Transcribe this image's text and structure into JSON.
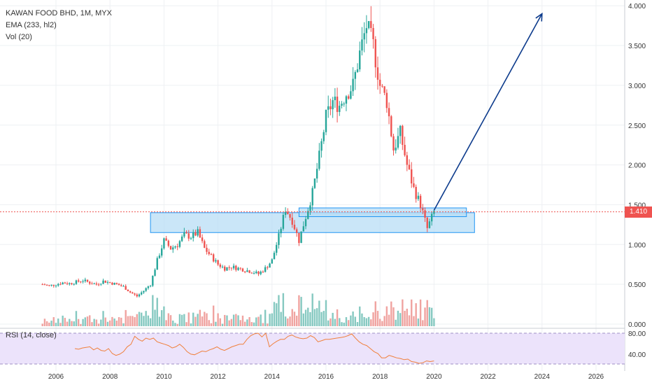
{
  "header": {
    "title": "KAWAN FOOD BHD, 1M, MYX",
    "indicator_ema": "EMA (233, hl2)",
    "indicator_vol": "Vol (20)"
  },
  "rsi": {
    "label": "RSI (14, close)",
    "y_ticks": [
      "80.00",
      "40.00"
    ],
    "values": [
      55,
      54,
      56,
      57,
      58,
      53,
      56,
      52,
      51,
      55,
      47,
      44,
      46,
      50,
      58,
      62,
      75,
      70,
      67,
      72,
      70,
      72,
      66,
      64,
      62,
      60,
      56,
      58,
      62,
      57,
      50,
      46,
      45,
      48,
      51,
      50,
      53,
      55,
      58,
      54,
      52,
      55,
      58,
      60,
      62,
      62,
      70,
      76,
      79,
      80,
      74,
      80,
      58,
      63,
      67,
      70,
      70,
      75,
      77,
      74,
      72,
      71,
      72,
      76,
      73,
      66,
      68,
      70,
      70,
      71,
      72,
      73,
      74,
      76,
      79,
      72,
      66,
      62,
      60,
      55,
      50,
      47,
      40,
      40,
      44,
      42,
      40,
      39,
      37,
      38,
      34,
      33,
      31,
      32,
      35,
      34,
      35
    ]
  },
  "price_tag": {
    "value": "1.410",
    "color": "#ef5350"
  },
  "colors": {
    "up": "#26a69a",
    "down": "#ef5350",
    "vol_up": "#86c9c1",
    "vol_down": "#f0a3a0",
    "zone_fill": "#b3dcf5",
    "zone_stroke": "#2196f3",
    "arrow": "#0d3b8c",
    "rsi_bg": "#ece3fb",
    "rsi_line": "#f0803c"
  },
  "chart_data": {
    "type": "candlestick",
    "title": "KAWAN FOOD BHD, 1M, MYX",
    "xlabel": "",
    "ylabel": "",
    "x_ticks": [
      "2006",
      "2008",
      "2010",
      "2012",
      "2014",
      "2016",
      "2018",
      "2020",
      "2022",
      "2024",
      "2026"
    ],
    "y_ticks": [
      "4.000",
      "3.500",
      "3.000",
      "2.500",
      "2.000",
      "1.500",
      "1.000",
      "0.500",
      "0.000"
    ],
    "ylim": [
      0,
      4.05
    ],
    "grid": true,
    "last_price": 1.41,
    "closes": [
      [
        2005.5,
        0.5
      ],
      [
        2005.75,
        0.48
      ],
      [
        2006.0,
        0.5
      ],
      [
        2006.25,
        0.52
      ],
      [
        2006.5,
        0.51
      ],
      [
        2006.75,
        0.53
      ],
      [
        2007.0,
        0.55
      ],
      [
        2007.25,
        0.52
      ],
      [
        2007.5,
        0.5
      ],
      [
        2007.75,
        0.54
      ],
      [
        2008.0,
        0.52
      ],
      [
        2008.25,
        0.5
      ],
      [
        2008.5,
        0.47
      ],
      [
        2008.75,
        0.4
      ],
      [
        2009.0,
        0.35
      ],
      [
        2009.25,
        0.42
      ],
      [
        2009.5,
        0.5
      ],
      [
        2009.75,
        0.8
      ],
      [
        2010.0,
        1.05
      ],
      [
        2010.25,
        0.95
      ],
      [
        2010.5,
        1.0
      ],
      [
        2010.75,
        1.12
      ],
      [
        2011.0,
        1.1
      ],
      [
        2011.25,
        1.15
      ],
      [
        2011.5,
        0.95
      ],
      [
        2011.75,
        0.85
      ],
      [
        2012.0,
        0.75
      ],
      [
        2012.25,
        0.7
      ],
      [
        2012.5,
        0.72
      ],
      [
        2012.75,
        0.7
      ],
      [
        2013.0,
        0.68
      ],
      [
        2013.25,
        0.66
      ],
      [
        2013.5,
        0.63
      ],
      [
        2013.75,
        0.7
      ],
      [
        2014.0,
        0.8
      ],
      [
        2014.25,
        1.1
      ],
      [
        2014.5,
        1.45
      ],
      [
        2014.75,
        1.3
      ],
      [
        2015.0,
        1.05
      ],
      [
        2015.25,
        1.35
      ],
      [
        2015.5,
        1.65
      ],
      [
        2015.75,
        2.1
      ],
      [
        2016.0,
        2.6
      ],
      [
        2016.25,
        2.8
      ],
      [
        2016.5,
        2.75
      ],
      [
        2016.75,
        2.9
      ],
      [
        2017.0,
        3.0
      ],
      [
        2017.25,
        3.4
      ],
      [
        2017.5,
        3.75
      ],
      [
        2017.75,
        3.5
      ],
      [
        2018.0,
        3.0
      ],
      [
        2018.25,
        2.8
      ],
      [
        2018.5,
        2.2
      ],
      [
        2018.75,
        2.4
      ],
      [
        2019.0,
        2.0
      ],
      [
        2019.25,
        1.7
      ],
      [
        2019.5,
        1.5
      ],
      [
        2019.75,
        1.2
      ],
      [
        2020.0,
        1.41
      ]
    ],
    "support_zones": [
      {
        "x_start": 2009.5,
        "x_end": 2021.5,
        "y_low": 1.15,
        "y_high": 1.4
      },
      {
        "x_start": 2015.0,
        "x_end": 2021.2,
        "y_low": 1.35,
        "y_high": 1.46
      }
    ],
    "projection_arrow": {
      "from": [
        2020.0,
        1.43
      ],
      "to": [
        2024.0,
        3.9
      ]
    }
  }
}
